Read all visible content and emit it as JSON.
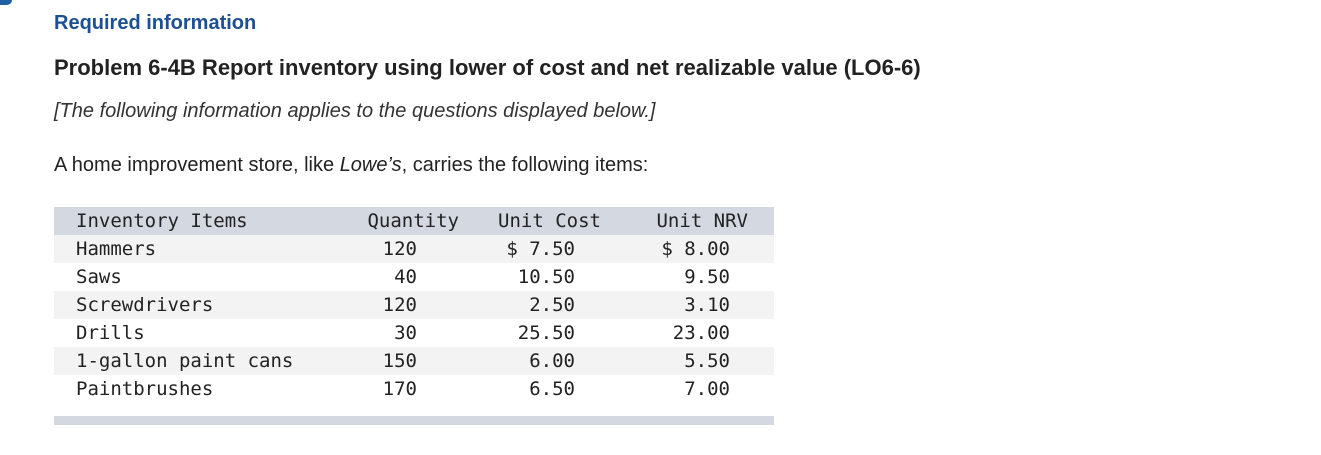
{
  "header": {
    "required_label": "Required information",
    "problem_title": "Problem 6-4B Report inventory using lower of cost and net realizable value (LO6-6)",
    "note": "[The following information applies to the questions displayed below.]",
    "intro_before": "A home improvement store, like ",
    "intro_store": "Lowe’s",
    "intro_after": ", carries the following items:"
  },
  "table": {
    "columns": [
      "Inventory Items",
      "Quantity",
      "Unit Cost",
      "Unit NRV"
    ],
    "rows": [
      {
        "item": "Hammers",
        "quantity": "120",
        "unit_cost": "$ 7.50",
        "unit_nrv": "$ 8.00"
      },
      {
        "item": "Saws",
        "quantity": "40",
        "unit_cost": "10.50",
        "unit_nrv": "9.50"
      },
      {
        "item": "Screwdrivers",
        "quantity": "120",
        "unit_cost": "2.50",
        "unit_nrv": "3.10"
      },
      {
        "item": "Drills",
        "quantity": "30",
        "unit_cost": "25.50",
        "unit_nrv": "23.00"
      },
      {
        "item": "1-gallon paint cans",
        "quantity": "150",
        "unit_cost": "6.00",
        "unit_nrv": "5.50"
      },
      {
        "item": "Paintbrushes",
        "quantity": "170",
        "unit_cost": "6.50",
        "unit_nrv": "7.00"
      }
    ]
  },
  "colors": {
    "heading_blue": "#1d4f91",
    "table_header_bg": "#d3d8e1",
    "row_stripe": "#f3f3f3"
  }
}
